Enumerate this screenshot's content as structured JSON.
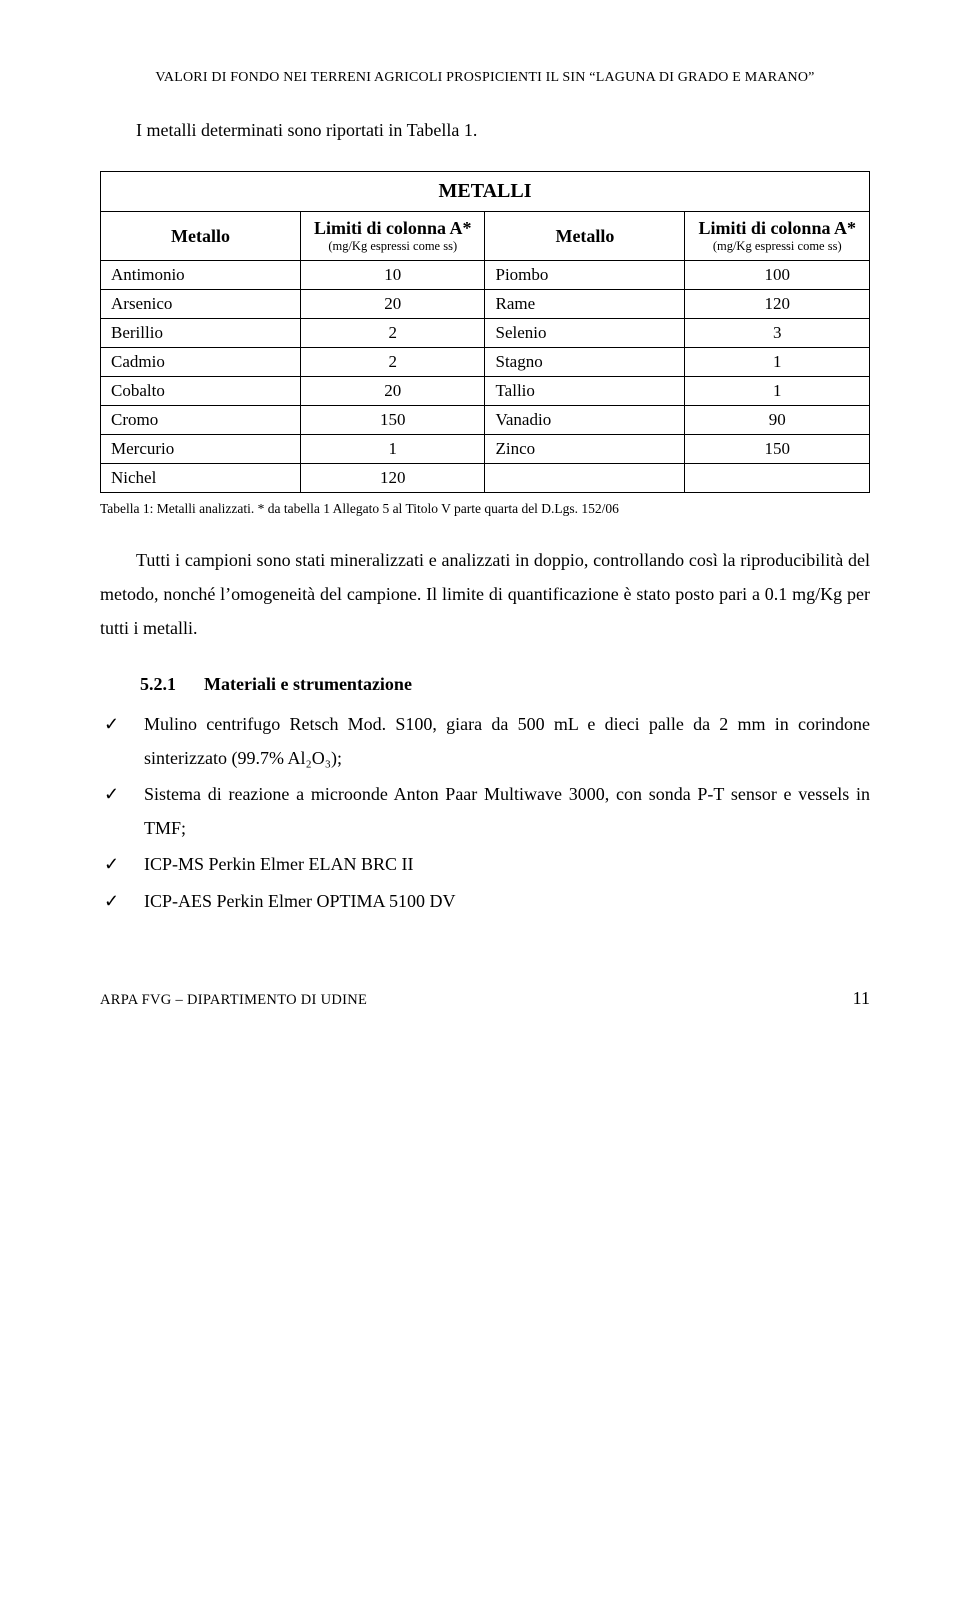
{
  "running_header": "VALORI DI FONDO NEI TERRENI AGRICOLI PROSPICIENTI IL SIN “LAGUNA DI GRADO E MARANO”",
  "intro": "I metalli determinati sono riportati in Tabella 1.",
  "table": {
    "title": "METALLI",
    "col1_label": "Metallo",
    "col2_label_main": "Limiti di colonna A*",
    "col2_label_sub": "(mg/Kg espressi come ss)",
    "col3_label": "Metallo",
    "col4_label_main": "Limiti di colonna A*",
    "col4_label_sub": "(mg/Kg espressi come ss)",
    "rows": [
      {
        "m1": "Antimonio",
        "v1": "10",
        "m2": "Piombo",
        "v2": "100"
      },
      {
        "m1": "Arsenico",
        "v1": "20",
        "m2": "Rame",
        "v2": "120"
      },
      {
        "m1": "Berillio",
        "v1": "2",
        "m2": "Selenio",
        "v2": "3"
      },
      {
        "m1": "Cadmio",
        "v1": "2",
        "m2": "Stagno",
        "v2": "1"
      },
      {
        "m1": "Cobalto",
        "v1": "20",
        "m2": "Tallio",
        "v2": "1"
      },
      {
        "m1": "Cromo",
        "v1": "150",
        "m2": "Vanadio",
        "v2": "90"
      },
      {
        "m1": "Mercurio",
        "v1": "1",
        "m2": "Zinco",
        "v2": "150"
      },
      {
        "m1": "Nichel",
        "v1": "120",
        "m2": "",
        "v2": ""
      }
    ]
  },
  "caption": "Tabella 1: Metalli analizzati. * da tabella 1 Allegato 5 al Titolo V parte quarta del D.Lgs. 152/06",
  "para1": "Tutti i campioni sono stati mineralizzati e analizzati in doppio, controllando così la riproducibilità del metodo, nonché l’omogeneità del campione. Il limite di quantificazione è stato posto pari a 0.1 mg/Kg per tutti i metalli.",
  "section": {
    "num": "5.2.1",
    "title": "Materiali e strumentazione"
  },
  "bullets": [
    "Mulino centrifugo Retsch Mod. S100, giara da 500 mL e dieci palle da 2 mm in corindone sinterizzato (99.7% Al₂O₃);",
    "Sistema di reazione a microonde Anton Paar Multiwave 3000, con sonda P-T sensor e vessels in TMF;",
    "ICP-MS Perkin Elmer ELAN BRC II",
    "ICP-AES Perkin Elmer OPTIMA 5100 DV"
  ],
  "footer": {
    "org": "ARPA FVG – DIPARTIMENTO DI UDINE",
    "page": "11"
  }
}
